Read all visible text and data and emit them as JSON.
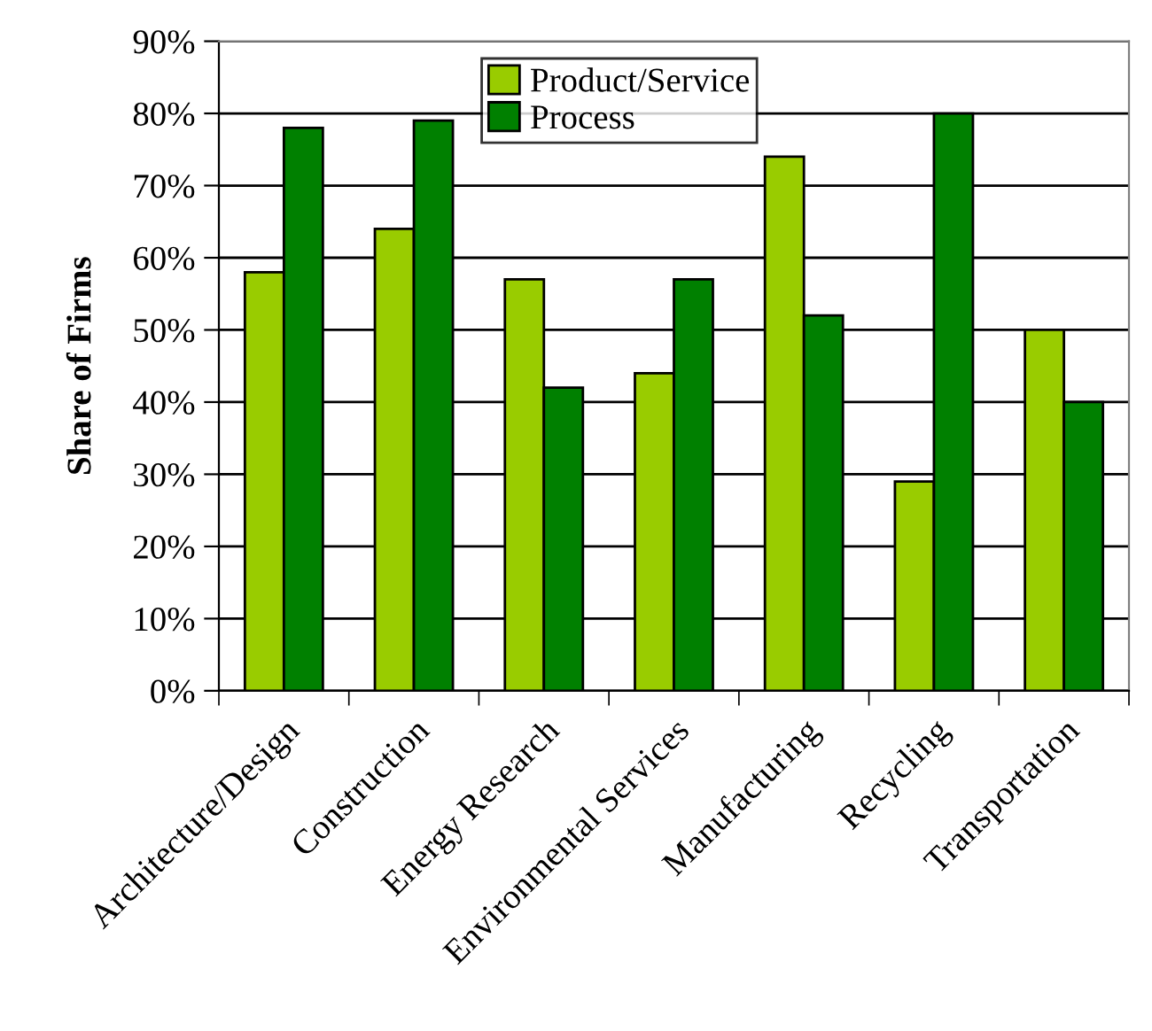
{
  "chart_data": {
    "type": "bar",
    "ylabel": "Share of Firms",
    "categories": [
      "Architecture/Design",
      "Construction",
      "Energy Research",
      "Environmental Services",
      "Manufacturing",
      "Recycling",
      "Transportation"
    ],
    "series": [
      {
        "name": "Product/Service",
        "color": "#99cc00",
        "values": [
          58,
          64,
          57,
          44,
          74,
          29,
          50
        ]
      },
      {
        "name": "Process",
        "color": "#008000",
        "values": [
          78,
          79,
          42,
          57,
          52,
          80,
          40
        ]
      }
    ],
    "ylim": [
      0,
      90
    ],
    "yticks": [
      {
        "value": 0,
        "label": "0%"
      },
      {
        "value": 10,
        "label": "10%"
      },
      {
        "value": 20,
        "label": "20%"
      },
      {
        "value": 30,
        "label": "30%"
      },
      {
        "value": 40,
        "label": "40%"
      },
      {
        "value": 50,
        "label": "50%"
      },
      {
        "value": 60,
        "label": "60%"
      },
      {
        "value": 70,
        "label": "70%"
      },
      {
        "value": 80,
        "label": "80%"
      },
      {
        "value": 90,
        "label": "90%"
      }
    ],
    "grid": "y",
    "legend": "top"
  }
}
